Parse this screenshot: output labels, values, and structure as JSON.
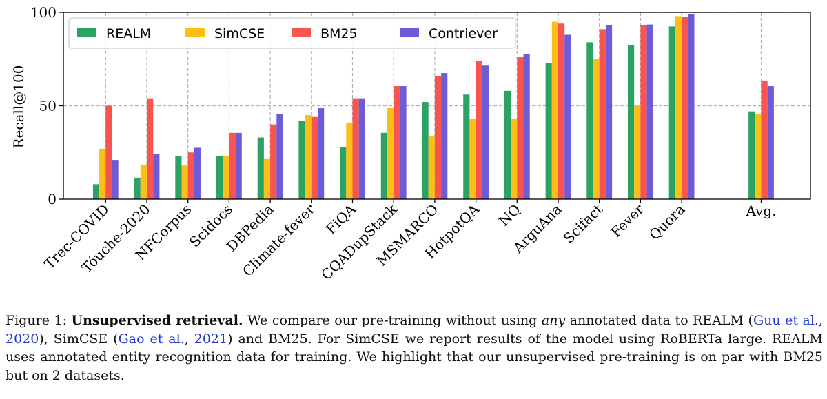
{
  "chart_data": {
    "type": "bar",
    "ylabel": "Recall@100",
    "ylim": [
      0,
      100
    ],
    "yticks": [
      0,
      50,
      100
    ],
    "grid": "dashed, at y-ticks and category ticks",
    "legend_position": "top-left, horizontal",
    "categories": [
      "Trec-COVID",
      "Tóuche-2020",
      "NFCorpus",
      "Scidocs",
      "DBPedia",
      "Climate-fever",
      "FiQA",
      "CQADupStack",
      "MSMARCO",
      "HotpotQA",
      "NQ",
      "ArguAna",
      "Scifact",
      "Fever",
      "Quora",
      "Avg."
    ],
    "series": [
      {
        "name": "REALM",
        "color": "#2ca363",
        "values": [
          8,
          11.5,
          23,
          23,
          33,
          42,
          28,
          35.5,
          52,
          56,
          58,
          73,
          84,
          82.5,
          92.5,
          47
        ]
      },
      {
        "name": "SimCSE",
        "color": "#fcbf17",
        "values": [
          27,
          18.5,
          18,
          23,
          21.5,
          45,
          41,
          49,
          33.5,
          43,
          43,
          95,
          75,
          50.5,
          98,
          45.5
        ]
      },
      {
        "name": "BM25",
        "color": "#f85450",
        "values": [
          50,
          54,
          25,
          35.5,
          40,
          44,
          54,
          60.5,
          66,
          74,
          76,
          94,
          91,
          93,
          97.5,
          63.5
        ]
      },
      {
        "name": "Contriever",
        "color": "#6d5bd8",
        "values": [
          21,
          24,
          27.5,
          35.5,
          45.5,
          49,
          54,
          60.5,
          67.5,
          71.5,
          77.5,
          88,
          93,
          93.5,
          99,
          60.5
        ]
      }
    ]
  },
  "caption": {
    "figure_label": "Figure 1:",
    "title": "Unsupervised retrieval.",
    "t1": " We compare our pre-training without using ",
    "t1_em": "any",
    "t2": " annotated data to REALM (",
    "ref1_authors": "Guu et al.",
    "sep1": ", ",
    "ref1_year": "2020",
    "t3": "), SimCSE (",
    "ref2_authors": "Gao et al.",
    "sep2": ", ",
    "ref2_year": "2021",
    "t4": ") and BM25. For SimCSE we report results of the model using RoBERTa large. REALM uses annotated entity recognition data for training. We highlight that our unsupervised pre-training is on par with BM25 but on 2 datasets."
  }
}
